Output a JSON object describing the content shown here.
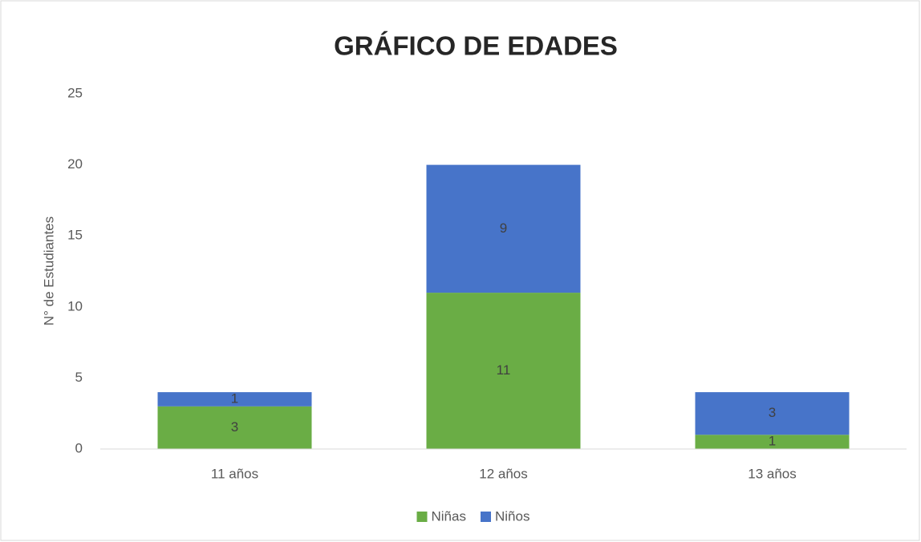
{
  "chart_data": {
    "type": "stacked_bar",
    "title": "GRÁFICO DE EDADES",
    "y_label": "N° de Estudiantes",
    "categories": [
      "11 años",
      "12 años",
      "13 años"
    ],
    "series": [
      {
        "name": "Niñas",
        "color": "#6aad45",
        "values": [
          3,
          11,
          1
        ]
      },
      {
        "name": "Niños",
        "color": "#4774c9",
        "values": [
          1,
          9,
          3
        ]
      }
    ],
    "ylim": [
      0,
      25
    ],
    "yticks": [
      0,
      5,
      10,
      15,
      20,
      25
    ],
    "grid": false,
    "legend": "bottom"
  }
}
